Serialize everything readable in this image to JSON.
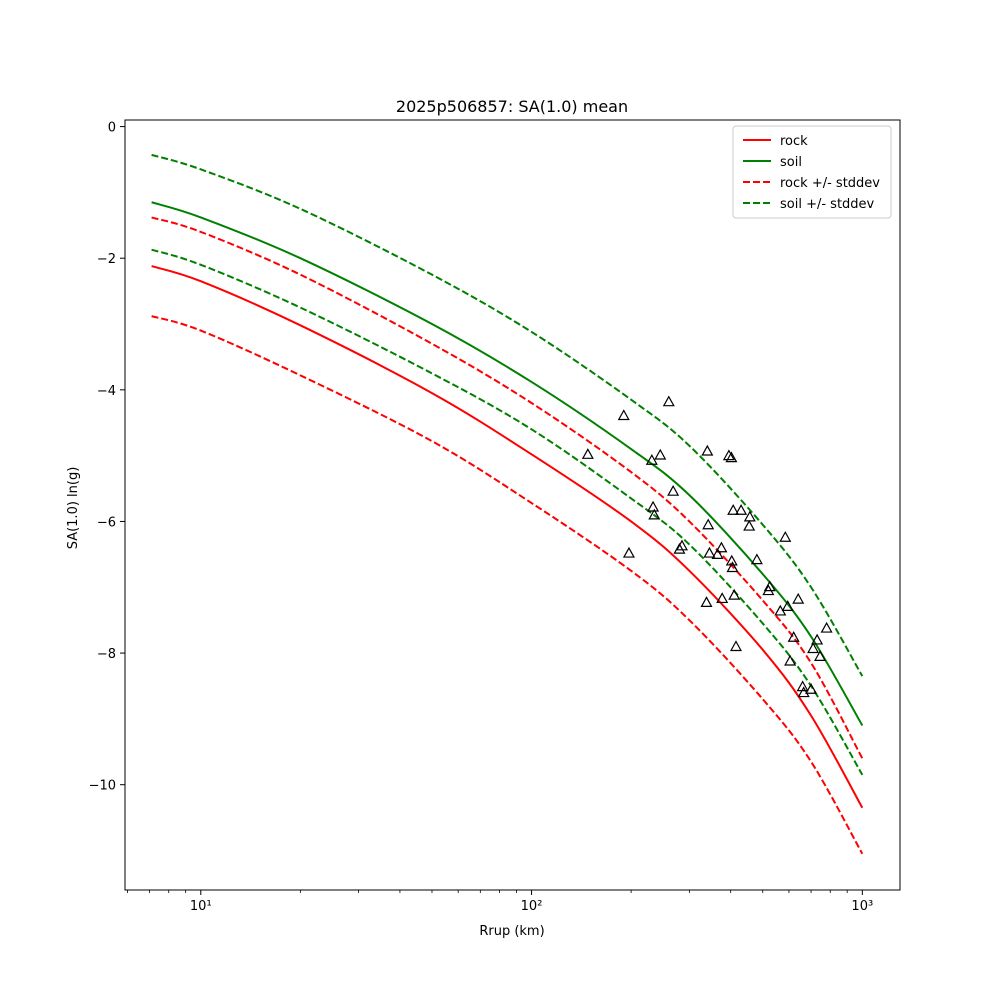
{
  "chart_data": {
    "type": "line",
    "title": "2025p506857: SA(1.0) mean",
    "xlabel": "Rrup (km)",
    "ylabel": "SA(1.0) ln(g)",
    "xscale": "log",
    "xlim": [
      5.9,
      1300
    ],
    "ylim": [
      -11.6,
      0.1
    ],
    "xticks": [
      10,
      100,
      1000
    ],
    "xtick_labels": [
      "10¹",
      "10²",
      "10³"
    ],
    "yticks": [
      0,
      -2,
      -4,
      -6,
      -8,
      -10
    ],
    "ytick_labels": [
      "0",
      "−2",
      "−4",
      "−6",
      "−8",
      "−10"
    ],
    "grid": false,
    "legend_position": "top-right",
    "colors": {
      "rock": "#ff0000",
      "soil": "#008000",
      "points": "#000000"
    },
    "series": [
      {
        "name": "rock",
        "style": "solid",
        "color": "#ff0000",
        "x": [
          7.1,
          10,
          20,
          50,
          100,
          200,
          300,
          500,
          700,
          1000
        ],
        "y": [
          -2.12,
          -2.35,
          -3.02,
          -4.05,
          -4.98,
          -6.0,
          -6.75,
          -7.95,
          -8.95,
          -10.35
        ]
      },
      {
        "name": "soil",
        "style": "solid",
        "color": "#008000",
        "x": [
          7.1,
          10,
          20,
          50,
          100,
          200,
          300,
          500,
          700,
          1000
        ],
        "y": [
          -1.15,
          -1.38,
          -2.0,
          -3.0,
          -3.88,
          -4.9,
          -5.6,
          -6.8,
          -7.75,
          -9.1
        ]
      },
      {
        "name": "rock +/- stddev",
        "style": "dashed",
        "color": "#ff0000",
        "x": [
          7.1,
          10,
          20,
          50,
          100,
          200,
          300,
          500,
          700,
          1000
        ],
        "y": [
          -1.38,
          -1.6,
          -2.25,
          -3.3,
          -4.2,
          -5.25,
          -6.0,
          -7.2,
          -8.15,
          -9.6
        ]
      },
      {
        "name": "",
        "style": "dashed",
        "color": "#ff0000",
        "x": [
          7.1,
          10,
          20,
          50,
          100,
          200,
          300,
          500,
          700,
          1000
        ],
        "y": [
          -2.88,
          -3.1,
          -3.78,
          -4.78,
          -5.72,
          -6.75,
          -7.5,
          -8.7,
          -9.65,
          -11.05
        ]
      },
      {
        "name": "soil +/- stddev",
        "style": "dashed",
        "color": "#008000",
        "x": [
          7.1,
          10,
          20,
          50,
          100,
          200,
          300,
          500,
          700,
          1000
        ],
        "y": [
          -0.43,
          -0.65,
          -1.25,
          -2.25,
          -3.12,
          -4.15,
          -4.85,
          -6.05,
          -7.0,
          -8.35
        ]
      },
      {
        "name": "",
        "style": "dashed",
        "color": "#008000",
        "x": [
          7.1,
          10,
          20,
          50,
          100,
          200,
          300,
          500,
          700,
          1000
        ],
        "y": [
          -1.87,
          -2.1,
          -2.75,
          -3.75,
          -4.6,
          -5.65,
          -6.35,
          -7.55,
          -8.5,
          -9.85
        ]
      }
    ],
    "observations": {
      "marker": "triangle",
      "x": [
        148,
        190,
        197,
        231,
        233,
        235,
        245,
        260,
        268,
        280,
        285,
        338,
        340,
        342,
        345,
        365,
        375,
        377,
        395,
        402,
        403,
        405,
        407,
        410,
        415,
        430,
        455,
        457,
        480,
        520,
        525,
        565,
        585,
        595,
        605,
        620,
        640,
        660,
        665,
        700,
        710,
        730,
        745,
        780
      ],
      "y": [
        -4.98,
        -4.39,
        -6.48,
        -5.07,
        -5.78,
        -5.9,
        -4.99,
        -4.18,
        -5.54,
        -6.42,
        -6.37,
        -7.23,
        -4.93,
        -6.05,
        -6.48,
        -6.5,
        -6.4,
        -7.17,
        -5.0,
        -5.03,
        -6.6,
        -6.7,
        -5.83,
        -7.12,
        -7.9,
        -5.83,
        -6.07,
        -5.93,
        -6.58,
        -7.05,
        -6.99,
        -7.36,
        -6.24,
        -7.29,
        -8.12,
        -7.76,
        -7.18,
        -8.51,
        -8.6,
        -8.55,
        -7.93,
        -7.8,
        -8.05,
        -7.62
      ]
    }
  }
}
